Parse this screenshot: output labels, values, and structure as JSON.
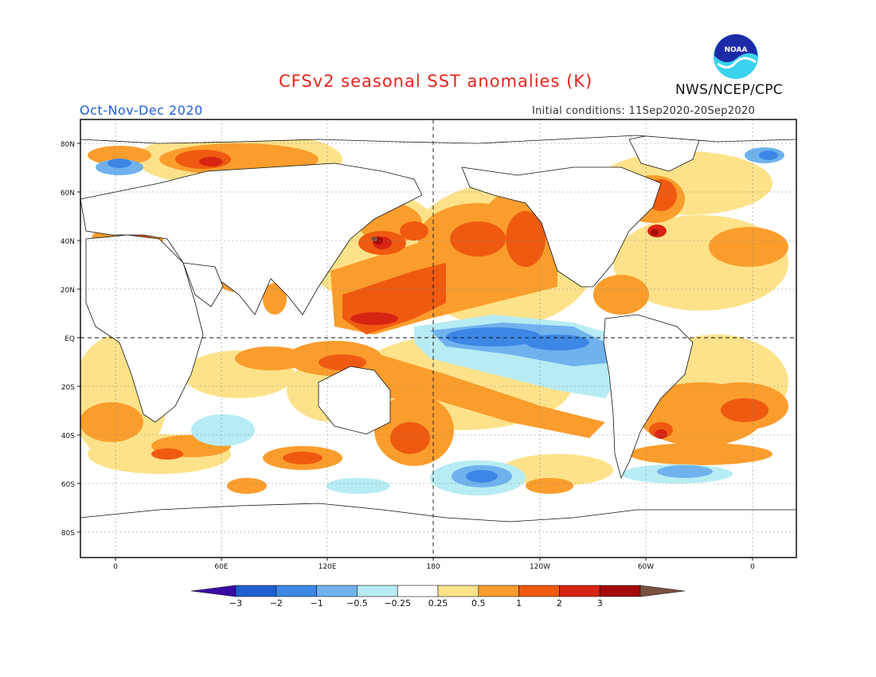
{
  "header": {
    "title": "CFSv2 seasonal SST anomalies (K)",
    "season": "Oct-Nov-Dec 2020",
    "initial_conditions": "Initial conditions: 11Sep2020-20Sep2020",
    "agency": "NWS/NCEP/CPC",
    "logo_text": "NOAA"
  },
  "axes": {
    "lat_labels": [
      "80N",
      "60N",
      "40N",
      "20N",
      "EQ",
      "20S",
      "40S",
      "60S",
      "80S"
    ],
    "lon_labels": [
      "0",
      "60E",
      "120E",
      "180",
      "120W",
      "60W",
      "0"
    ]
  },
  "colorbar": {
    "labels": [
      "-3",
      "-2",
      "-1",
      "-0.5",
      "-0.25",
      "0.25",
      "0.5",
      "1",
      "2",
      "3"
    ],
    "colors": [
      "#3a0aa6",
      "#1f5fd0",
      "#3c86e6",
      "#6fb2ee",
      "#b7ecf4",
      "#ffffff",
      "#fde28a",
      "#fb9d2c",
      "#ef5a10",
      "#d82412",
      "#a40a0a",
      "#7a5040"
    ]
  }
}
